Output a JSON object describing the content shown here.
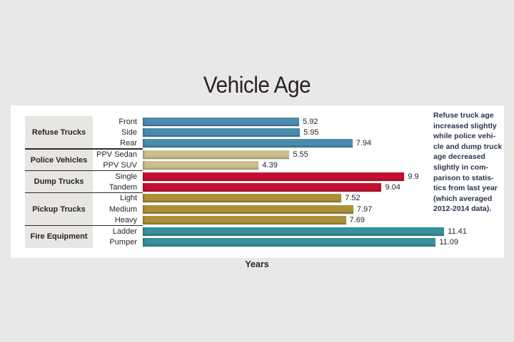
{
  "title": "Vehicle Age",
  "xlabel": "Years",
  "annotation": "Refuse truck age\nincreased slightly\nwhile police vehi-\ncle and dump truck\nage decreased\nslightly in com-\nparison to statis-\ntics from last year\n(which averaged\n2012-2014 data).",
  "colors": {
    "refuse_trucks": "#4b8bad",
    "police_vehicles": "#cbbd8c",
    "dump_trucks": "#c60f30",
    "pickup_trucks": "#ab9038",
    "fire_equipment": "#37909a",
    "annotation_text": "#2b344d",
    "divider_line": "#2e2b27",
    "group_label_bg": "#e8e6e3",
    "card_bg": "#ffffff",
    "page_bg": "#e9e8e6"
  },
  "chart_data": {
    "type": "bar",
    "orientation": "horizontal",
    "title": "Vehicle Age",
    "xlabel": "Years",
    "value_unit": "years",
    "x_range_implied": [
      0,
      12.4
    ],
    "grid": false,
    "legend": false,
    "groups": [
      {
        "label": "Refuse Trucks",
        "color": "#4b8bad",
        "rows": [
          {
            "label": "Front",
            "value": 5.92
          },
          {
            "label": "Side",
            "value": 5.95
          },
          {
            "label": "Rear",
            "value": 7.94
          }
        ]
      },
      {
        "label": "Police Vehicles",
        "color": "#cbbd8c",
        "rows": [
          {
            "label": "PPV Sedan",
            "value": 5.55
          },
          {
            "label": "PPV SUV",
            "value": 4.39
          }
        ]
      },
      {
        "label": "Dump Trucks",
        "color": "#c60f30",
        "rows": [
          {
            "label": "Single",
            "value": 9.9
          },
          {
            "label": "Tandem",
            "value": 9.04
          }
        ]
      },
      {
        "label": "Pickup Trucks",
        "color": "#ab9038",
        "rows": [
          {
            "label": "Light",
            "value": 7.52
          },
          {
            "label": "Medium",
            "value": 7.97
          },
          {
            "label": "Heavy",
            "value": 7.69
          }
        ]
      },
      {
        "label": "Fire Equipment",
        "color": "#37909a",
        "rows": [
          {
            "label": "Ladder",
            "value": 11.41
          },
          {
            "label": "Pumper",
            "value": 11.09
          }
        ]
      }
    ]
  }
}
